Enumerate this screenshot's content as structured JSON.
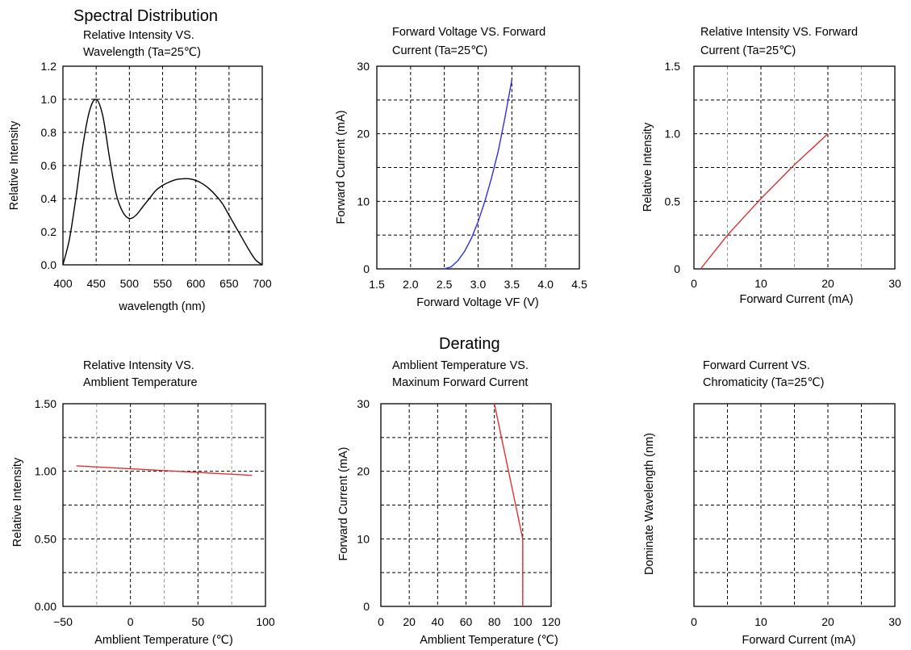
{
  "page": {
    "spectral_heading": "Spectral Distribution",
    "derating_heading": "Derating"
  },
  "chart_data": [
    {
      "id": "c1",
      "type": "line",
      "title_lines": [
        "Relative Intensity VS.",
        "Wavelength (Ta=25℃)"
      ],
      "xlabel": "wavelength (nm)",
      "ylabel": "Relative Intensity",
      "xlim": [
        400,
        700
      ],
      "ylim": [
        0,
        1.2
      ],
      "x_ticks": [
        400,
        450,
        500,
        550,
        600,
        650,
        700
      ],
      "x_tick_labels": [
        "400",
        "450",
        "500",
        "550",
        "600",
        "650",
        "700"
      ],
      "y_ticks": [
        0,
        0.2,
        0.4,
        0.6,
        0.8,
        1.0,
        1.2
      ],
      "y_tick_labels": [
        "0.0",
        "0.2",
        "0.4",
        "0.6",
        "0.8",
        "1.0",
        "1.2"
      ],
      "grid": true,
      "series": [
        {
          "color": "#000000",
          "x": [
            400,
            410,
            420,
            430,
            440,
            450,
            460,
            470,
            480,
            490,
            500,
            510,
            520,
            530,
            540,
            550,
            560,
            570,
            580,
            590,
            600,
            610,
            620,
            630,
            640,
            650,
            660,
            670,
            680,
            690,
            700
          ],
          "y": [
            0,
            0.16,
            0.42,
            0.72,
            0.93,
            1.0,
            0.9,
            0.65,
            0.43,
            0.32,
            0.28,
            0.3,
            0.35,
            0.4,
            0.45,
            0.48,
            0.5,
            0.515,
            0.52,
            0.52,
            0.51,
            0.49,
            0.46,
            0.42,
            0.37,
            0.3,
            0.23,
            0.16,
            0.09,
            0.03,
            0
          ]
        }
      ]
    },
    {
      "id": "c2",
      "type": "line",
      "title_lines": [
        "Forward Voltage VS. Forward",
        "Current (Ta=25℃)"
      ],
      "xlabel": "Forward Voltage VF (V)",
      "ylabel": "Forward Current (mA)",
      "xlim": [
        1.5,
        4.5
      ],
      "ylim": [
        0,
        30
      ],
      "x_ticks": [
        1.5,
        2.0,
        2.5,
        3.0,
        3.5,
        4.0,
        4.5
      ],
      "x_tick_labels": [
        "1.5",
        "2.0",
        "2.5",
        "3.0",
        "3.5",
        "4.0",
        "4.5"
      ],
      "y_ticks": [
        0,
        10,
        20,
        30
      ],
      "y_tick_labels": [
        "0",
        "10",
        "20",
        "30"
      ],
      "y_minor_gridlines": [
        5,
        15,
        25
      ],
      "grid": true,
      "series": [
        {
          "color": "#2f2fe0",
          "x": [
            2.5,
            2.6,
            2.7,
            2.8,
            2.9,
            3.0,
            3.1,
            3.2,
            3.3,
            3.4,
            3.5
          ],
          "y": [
            0,
            0.3,
            1.2,
            2.6,
            4.5,
            7.0,
            10.0,
            13.5,
            17.5,
            22.5,
            28.0
          ]
        }
      ]
    },
    {
      "id": "c3",
      "type": "line",
      "title_lines": [
        "Relative Intensity VS. Forward",
        "Current (Ta=25℃)"
      ],
      "xlabel": "Forward Current (mA)",
      "ylabel": "Relative Intensity",
      "xlim": [
        0,
        30
      ],
      "ylim": [
        0,
        1.5
      ],
      "x_ticks": [
        0,
        10,
        20,
        30
      ],
      "x_tick_labels": [
        "0",
        "10",
        "20",
        "30"
      ],
      "x_minor_gridlines": [
        5,
        15,
        25
      ],
      "y_ticks": [
        0,
        0.5,
        1.0,
        1.5
      ],
      "y_tick_labels": [
        "0",
        "0.5",
        "1.0",
        "1.5"
      ],
      "y_minor_gridlines": [
        0.25,
        0.75,
        1.25
      ],
      "grid": true,
      "series": [
        {
          "color": "#e03030",
          "x": [
            1,
            5,
            10,
            15,
            20
          ],
          "y": [
            0,
            0.25,
            0.52,
            0.77,
            1.0
          ]
        }
      ]
    },
    {
      "id": "c4",
      "type": "line",
      "title_lines": [
        "Relative Intensity VS.",
        "Amblient Temperature"
      ],
      "xlabel": "Amblient Temperature (℃)",
      "ylabel": "Relative Intensity",
      "xlim": [
        -50,
        100
      ],
      "ylim": [
        0,
        1.5
      ],
      "x_ticks": [
        -50,
        0,
        50,
        100
      ],
      "x_tick_labels": [
        "−50",
        "0",
        "50",
        "100"
      ],
      "x_minor_gridlines": [
        -25,
        25,
        75
      ],
      "y_ticks": [
        0,
        0.5,
        1.0,
        1.5
      ],
      "y_tick_labels": [
        "0.00",
        "0.50",
        "1.00",
        "1.50"
      ],
      "y_minor_gridlines": [
        0.25,
        0.75,
        1.25
      ],
      "grid": true,
      "series": [
        {
          "color": "#e03030",
          "x": [
            -40,
            90
          ],
          "y": [
            1.04,
            0.97
          ]
        }
      ]
    },
    {
      "id": "c5",
      "type": "line",
      "title_lines": [
        "Amblient Temperature VS.",
        "Maxinum Forward Current"
      ],
      "xlabel": "Amblient Temperature (℃)",
      "ylabel": "Forward Current (mA)",
      "xlim": [
        0,
        120
      ],
      "ylim": [
        0,
        30
      ],
      "x_ticks": [
        0,
        20,
        40,
        60,
        80,
        100,
        120
      ],
      "x_tick_labels": [
        "0",
        "20",
        "40",
        "60",
        "80",
        "100",
        "120"
      ],
      "y_ticks": [
        0,
        10,
        20,
        30
      ],
      "y_tick_labels": [
        "0",
        "10",
        "20",
        "30"
      ],
      "y_minor_gridlines": [
        5,
        15,
        25
      ],
      "grid": true,
      "series": [
        {
          "color": "#e03030",
          "x": [
            80,
            100,
            100
          ],
          "y": [
            30,
            10,
            0
          ]
        }
      ]
    },
    {
      "id": "c6",
      "type": "line",
      "title_lines": [
        "Forward Current VS.",
        "Chromaticity (Ta=25℃)"
      ],
      "xlabel": "Forward Current (mA)",
      "ylabel": "Dominate Wavelength (nm)",
      "xlim": [
        0,
        30
      ],
      "ylim": [
        0,
        6
      ],
      "x_ticks": [
        0,
        10,
        20,
        30
      ],
      "x_tick_labels": [
        "0",
        "10",
        "20",
        "30"
      ],
      "x_minor_gridlines": [
        5,
        15,
        25
      ],
      "y_ticks": [],
      "y_tick_labels": [],
      "y_minor_gridlines": [
        1,
        2,
        3,
        4,
        5
      ],
      "grid": true,
      "series": []
    }
  ]
}
